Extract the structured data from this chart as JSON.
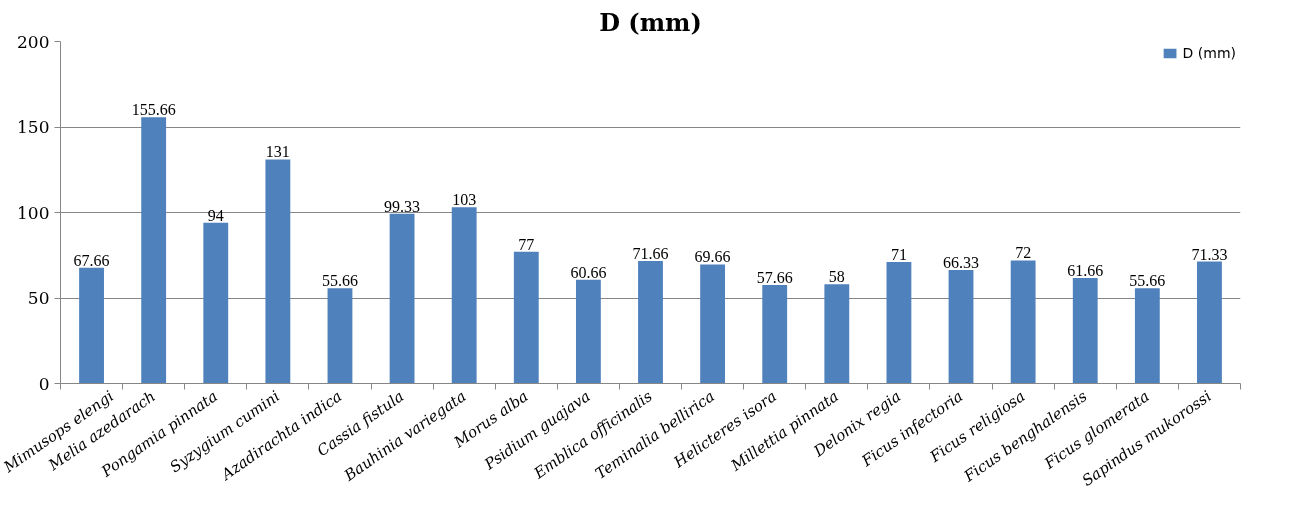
{
  "chart_data": {
    "type": "bar",
    "title": "D (mm)",
    "categories": [
      "Mimusops elengi",
      "Melia azedarach",
      "Pongamia pinnata",
      "Syzygium cumini",
      "Azadirachta indica",
      "Cassia fistula",
      "Bauhinia variegata",
      "Morus alba",
      "Psidium guajava",
      "Emblica officinalis",
      "Teminalia bellirica",
      "Helicteres isora",
      "Millettia pinnata",
      "Delonix regia",
      "Ficus infectoria",
      "Ficus religiosa",
      "Ficus benghalensis",
      "Ficus glomerata",
      "Sapindus mukorossi"
    ],
    "series": [
      {
        "name": "D (mm)",
        "color": "#4f81bd",
        "values": [
          67.66,
          155.66,
          94,
          131,
          55.66,
          99.33,
          103,
          77,
          60.66,
          71.66,
          69.66,
          57.66,
          58,
          71,
          66.33,
          72,
          61.66,
          55.66,
          71.33
        ]
      }
    ],
    "ylim": [
      0,
      200
    ],
    "yticks": [
      0,
      50,
      100,
      150,
      200
    ],
    "grid": "y",
    "legend": "top right",
    "data_labels": true
  }
}
